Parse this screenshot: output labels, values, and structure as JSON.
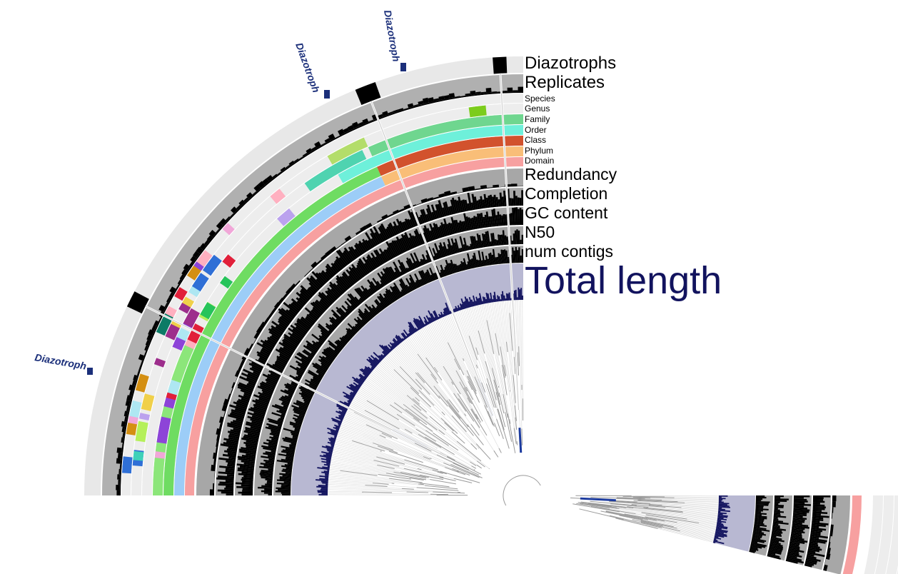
{
  "chart_data": {
    "type": "radial-phylogenomic",
    "layers": [
      {
        "key": "diazotrophs",
        "label": "Diazotrophs"
      },
      {
        "key": "replicates",
        "label": "Replicates"
      },
      {
        "key": "species",
        "label": "Species"
      },
      {
        "key": "genus",
        "label": "Genus"
      },
      {
        "key": "family",
        "label": "Family"
      },
      {
        "key": "order",
        "label": "Order"
      },
      {
        "key": "class",
        "label": "Class"
      },
      {
        "key": "phylum",
        "label": "Phylum"
      },
      {
        "key": "domain",
        "label": "Domain"
      },
      {
        "key": "redundancy",
        "label": "Redundancy"
      },
      {
        "key": "completion",
        "label": "Completion"
      },
      {
        "key": "gc_content",
        "label": "GC content"
      },
      {
        "key": "n50",
        "label": "N50"
      },
      {
        "key": "num_contigs",
        "label": "num contigs"
      },
      {
        "key": "total_length",
        "label": "Total length"
      }
    ],
    "callouts": [
      "Diazotroph",
      "Diazotroph",
      "Diazotroph"
    ],
    "colors": {
      "track_background": "#e8e8e8",
      "replicates_background": "#b0b0b0",
      "metric_background": "#a7a7a7",
      "bar_fill": "#000000",
      "total_length_background": "#b8b8d2",
      "total_length_fill": "#12135e",
      "tree_branch": "#9a9a9a",
      "highlight_branch": "#1b3a9e",
      "callout": "#1b2f7a",
      "taxonomy": {
        "domain": "#f7a0a0",
        "phylum_outer": "#f9be78",
        "phylum_inner": "#9ccdf7",
        "class_outer": "#d2522d",
        "class_inner": "#6fdc62",
        "order": "#6ef0da",
        "family": "#6fd68f",
        "genus": "#7ccc1c"
      }
    }
  }
}
